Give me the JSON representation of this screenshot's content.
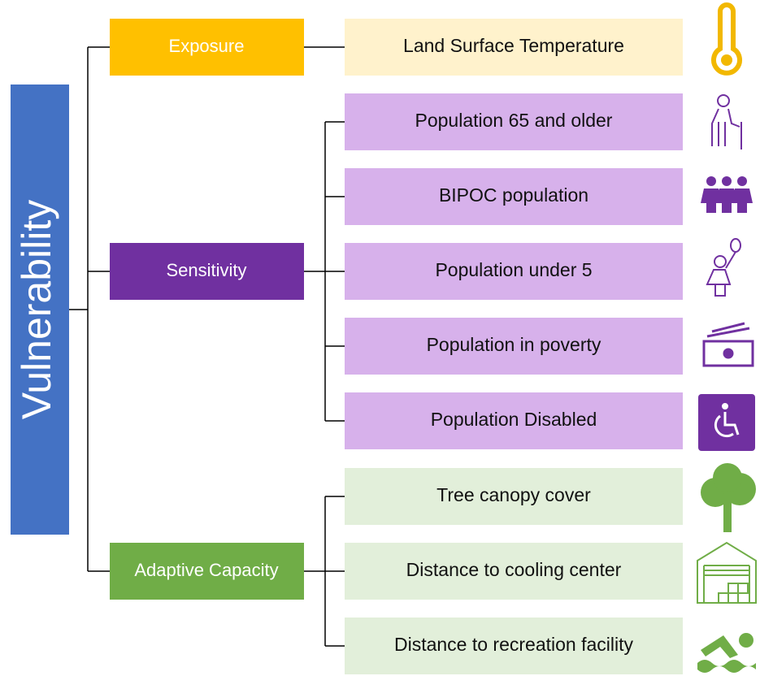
{
  "root": {
    "label": "Vulnerability"
  },
  "categories": [
    {
      "label": "Exposure",
      "items": [
        "Land Surface Temperature"
      ]
    },
    {
      "label": "Sensitivity",
      "items": [
        "Population 65 and older",
        "BIPOC population",
        "Population under 5",
        "Population in poverty",
        "Population Disabled"
      ]
    },
    {
      "label": "Adaptive Capacity",
      "items": [
        "Tree canopy cover",
        "Distance to cooling center",
        "Distance to recreation facility"
      ]
    }
  ]
}
